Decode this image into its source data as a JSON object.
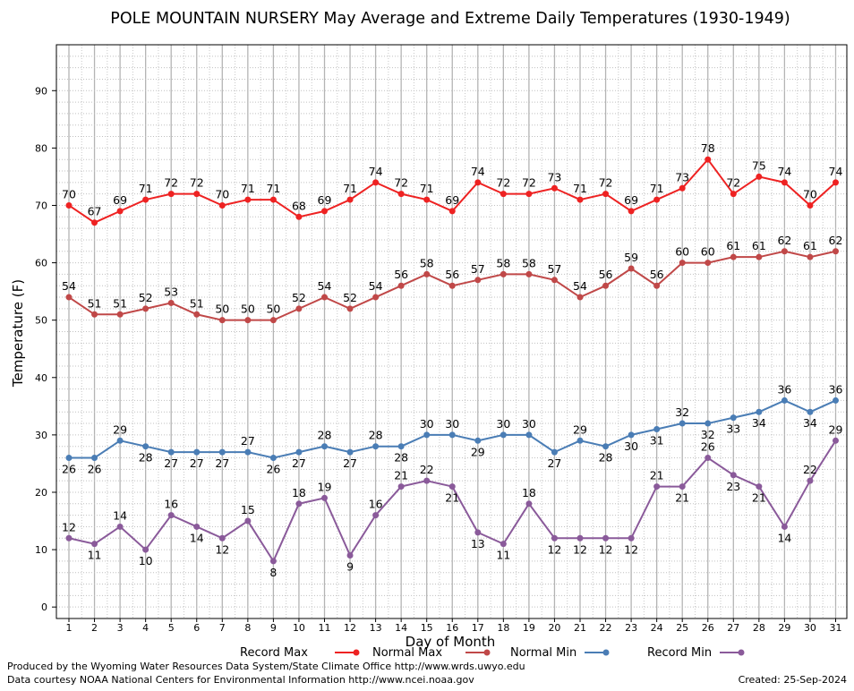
{
  "chart_data": {
    "type": "line",
    "title": "POLE MOUNTAIN NURSERY May Average and Extreme Daily Temperatures (1930-1949)",
    "xlabel": "Day of Month",
    "ylabel": "Temperature (F)",
    "x": [
      1,
      2,
      3,
      4,
      5,
      6,
      7,
      8,
      9,
      10,
      11,
      12,
      13,
      14,
      15,
      16,
      17,
      18,
      19,
      20,
      21,
      22,
      23,
      24,
      25,
      26,
      27,
      28,
      29,
      30,
      31
    ],
    "ylim": [
      -2,
      98
    ],
    "yticks": [
      0,
      10,
      20,
      30,
      40,
      50,
      60,
      70,
      80,
      90
    ],
    "grid": true,
    "legend_position": "bottom",
    "series": [
      {
        "name": "Record Max",
        "color": "#ee2222",
        "values": [
          70,
          67,
          69,
          71,
          72,
          72,
          70,
          71,
          71,
          68,
          69,
          71,
          74,
          72,
          71,
          69,
          74,
          72,
          72,
          73,
          71,
          72,
          69,
          71,
          73,
          78,
          72,
          75,
          74,
          70,
          74
        ]
      },
      {
        "name": "Normal Max",
        "color": "#c04848",
        "values": [
          54,
          51,
          51,
          52,
          53,
          51,
          50,
          50,
          50,
          52,
          54,
          52,
          54,
          56,
          58,
          56,
          57,
          58,
          58,
          57,
          54,
          56,
          59,
          56,
          60,
          60,
          61,
          61,
          62,
          61,
          62
        ]
      },
      {
        "name": "Normal Min",
        "color": "#4a7db5",
        "values": [
          26,
          26,
          29,
          28,
          27,
          27,
          27,
          27,
          26,
          27,
          28,
          27,
          28,
          28,
          30,
          30,
          29,
          30,
          30,
          27,
          29,
          28,
          30,
          31,
          32,
          32,
          33,
          34,
          36,
          34,
          36
        ]
      },
      {
        "name": "Record Min",
        "color": "#8a5a9a",
        "values": [
          12,
          11,
          14,
          10,
          16,
          14,
          12,
          15,
          8,
          18,
          19,
          9,
          16,
          21,
          22,
          21,
          13,
          11,
          18,
          12,
          12,
          12,
          12,
          21,
          21,
          26,
          23,
          21,
          14,
          22,
          29
        ]
      }
    ]
  },
  "footer": {
    "produced_by": "Produced by the Wyoming Water Resources Data System/State Climate Office http://www.wrds.uwyo.edu",
    "data_courtesy": "Data courtesy NOAA National Centers for Environmental Information http://www.ncei.noaa.gov",
    "created": "Created:  25-Sep-2024"
  }
}
